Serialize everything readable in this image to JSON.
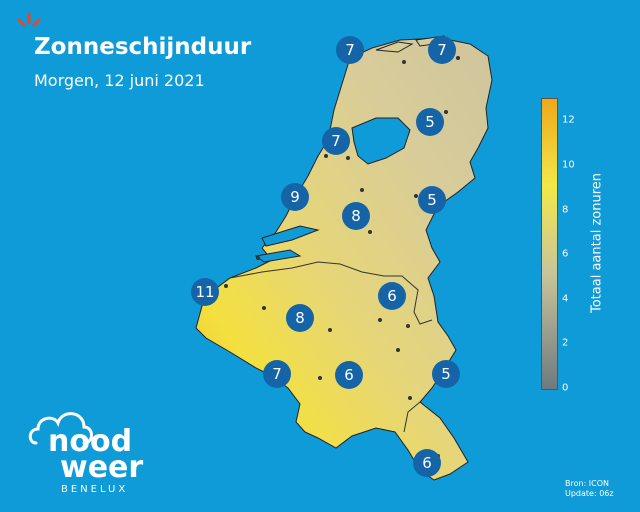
{
  "header": {
    "title": "Zonneschijnduur",
    "subtitle": "Morgen, 12 juni 2021"
  },
  "legend": {
    "title": "Totaal aantal zonuren",
    "ticks": [
      "0",
      "2",
      "4",
      "6",
      "8",
      "10",
      "12"
    ],
    "range": [
      0,
      13
    ],
    "colors": {
      "low": "#6e7a80",
      "mid": "#c9c49a",
      "high": "#f2e84a",
      "top": "#f0a81a"
    }
  },
  "source": {
    "line1": "Bron: ICON",
    "line2": "Update: 06z"
  },
  "logo": {
    "word1": "nood",
    "word2": "weer",
    "sub": "BENELUX"
  },
  "markers": [
    {
      "value": "7",
      "region": "Noord-Holland kop"
    },
    {
      "value": "7",
      "region": "Groningen"
    },
    {
      "value": "5",
      "region": "Drenthe"
    },
    {
      "value": "7",
      "region": "Noord-Holland"
    },
    {
      "value": "9",
      "region": "Zuid-Holland"
    },
    {
      "value": "8",
      "region": "Utrecht"
    },
    {
      "value": "5",
      "region": "Gelderland"
    },
    {
      "value": "11",
      "region": "Belgische kust"
    },
    {
      "value": "6",
      "region": "Limburg NL"
    },
    {
      "value": "8",
      "region": "Vlaanderen"
    },
    {
      "value": "7",
      "region": "Henegouwen"
    },
    {
      "value": "6",
      "region": "Namen"
    },
    {
      "value": "5",
      "region": "Eifel"
    },
    {
      "value": "6",
      "region": "Luxemburg"
    }
  ],
  "colors": {
    "background": "#0f9ad8",
    "marker": "#1564a8",
    "water": "#0f9ad8"
  }
}
